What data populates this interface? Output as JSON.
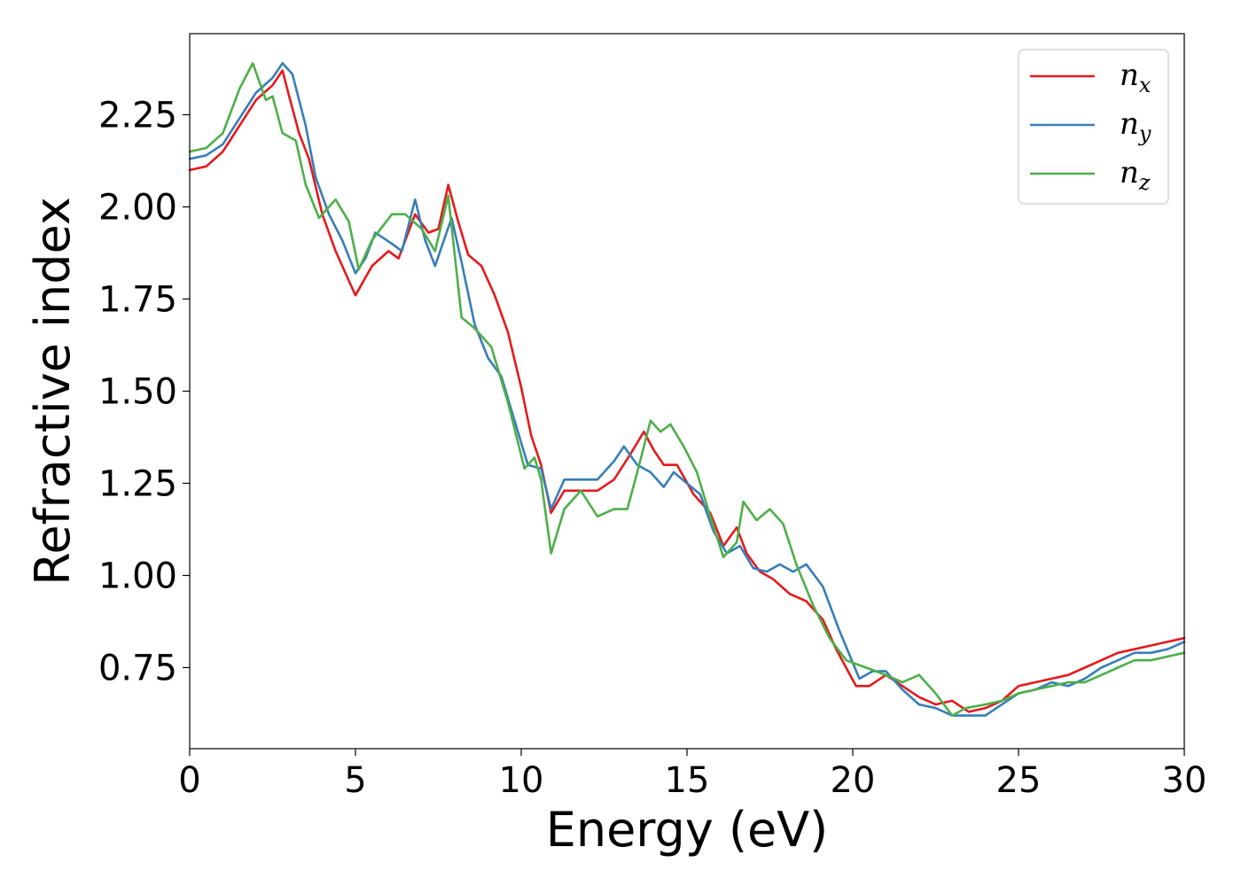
{
  "chart_data": {
    "type": "line",
    "xlabel": "Energy (eV)",
    "ylabel": "Refractive index",
    "xlim": [
      0,
      30
    ],
    "ylim": [
      0.53,
      2.47
    ],
    "x_ticks": [
      0,
      5,
      10,
      15,
      20,
      25,
      30
    ],
    "x_tick_labels": [
      "0",
      "5",
      "10",
      "15",
      "20",
      "25",
      "30"
    ],
    "y_ticks": [
      0.75,
      1.0,
      1.25,
      1.5,
      1.75,
      2.0,
      2.25
    ],
    "y_tick_labels": [
      "0.75",
      "1.00",
      "1.25",
      "1.50",
      "1.75",
      "2.00",
      "2.25"
    ],
    "grid": false,
    "legend_position": "top-right",
    "series": [
      {
        "name": "n_x",
        "legend_base": "n",
        "legend_sub": "x",
        "color": "#e41a1c",
        "points": [
          [
            0,
            2.1
          ],
          [
            0.5,
            2.11
          ],
          [
            1,
            2.15
          ],
          [
            1.5,
            2.22
          ],
          [
            2,
            2.29
          ],
          [
            2.5,
            2.33
          ],
          [
            2.8,
            2.37
          ],
          [
            3,
            2.3
          ],
          [
            3.3,
            2.2
          ],
          [
            3.6,
            2.13
          ],
          [
            4,
            1.98
          ],
          [
            4.4,
            1.88
          ],
          [
            4.8,
            1.8
          ],
          [
            5,
            1.76
          ],
          [
            5.5,
            1.84
          ],
          [
            6,
            1.88
          ],
          [
            6.3,
            1.86
          ],
          [
            6.8,
            1.98
          ],
          [
            7.2,
            1.93
          ],
          [
            7.5,
            1.94
          ],
          [
            7.8,
            2.06
          ],
          [
            8.1,
            1.96
          ],
          [
            8.4,
            1.87
          ],
          [
            8.8,
            1.84
          ],
          [
            9.2,
            1.76
          ],
          [
            9.6,
            1.66
          ],
          [
            10,
            1.51
          ],
          [
            10.3,
            1.38
          ],
          [
            10.6,
            1.3
          ],
          [
            10.9,
            1.17
          ],
          [
            11.3,
            1.23
          ],
          [
            11.8,
            1.23
          ],
          [
            12.3,
            1.23
          ],
          [
            12.8,
            1.26
          ],
          [
            13.3,
            1.33
          ],
          [
            13.7,
            1.39
          ],
          [
            14,
            1.34
          ],
          [
            14.3,
            1.3
          ],
          [
            14.7,
            1.3
          ],
          [
            15.2,
            1.22
          ],
          [
            15.7,
            1.17
          ],
          [
            16.1,
            1.08
          ],
          [
            16.5,
            1.13
          ],
          [
            16.8,
            1.06
          ],
          [
            17.2,
            1.01
          ],
          [
            17.6,
            0.99
          ],
          [
            18.1,
            0.95
          ],
          [
            18.6,
            0.93
          ],
          [
            19.1,
            0.88
          ],
          [
            19.5,
            0.8
          ],
          [
            20.1,
            0.7
          ],
          [
            20.5,
            0.7
          ],
          [
            21,
            0.73
          ],
          [
            21.5,
            0.7
          ],
          [
            22,
            0.67
          ],
          [
            22.5,
            0.65
          ],
          [
            23,
            0.66
          ],
          [
            23.5,
            0.63
          ],
          [
            24,
            0.64
          ],
          [
            24.5,
            0.66
          ],
          [
            25,
            0.7
          ],
          [
            25.5,
            0.71
          ],
          [
            26,
            0.72
          ],
          [
            26.5,
            0.73
          ],
          [
            27,
            0.75
          ],
          [
            27.5,
            0.77
          ],
          [
            28,
            0.79
          ],
          [
            28.5,
            0.8
          ],
          [
            29,
            0.81
          ],
          [
            29.5,
            0.82
          ],
          [
            30,
            0.83
          ]
        ]
      },
      {
        "name": "n_y",
        "legend_base": "n",
        "legend_sub": "y",
        "color": "#377eb8",
        "points": [
          [
            0,
            2.13
          ],
          [
            0.5,
            2.14
          ],
          [
            1,
            2.17
          ],
          [
            1.5,
            2.24
          ],
          [
            2,
            2.31
          ],
          [
            2.5,
            2.35
          ],
          [
            2.8,
            2.39
          ],
          [
            3.1,
            2.36
          ],
          [
            3.5,
            2.22
          ],
          [
            3.8,
            2.08
          ],
          [
            4.2,
            1.98
          ],
          [
            4.6,
            1.91
          ],
          [
            5,
            1.82
          ],
          [
            5.3,
            1.86
          ],
          [
            5.6,
            1.93
          ],
          [
            6.1,
            1.9
          ],
          [
            6.4,
            1.88
          ],
          [
            6.8,
            2.02
          ],
          [
            7.1,
            1.91
          ],
          [
            7.4,
            1.84
          ],
          [
            7.9,
            1.97
          ],
          [
            8.2,
            1.85
          ],
          [
            8.6,
            1.68
          ],
          [
            9,
            1.59
          ],
          [
            9.4,
            1.54
          ],
          [
            9.8,
            1.42
          ],
          [
            10.2,
            1.3
          ],
          [
            10.6,
            1.29
          ],
          [
            10.9,
            1.18
          ],
          [
            11.3,
            1.26
          ],
          [
            11.8,
            1.26
          ],
          [
            12.3,
            1.26
          ],
          [
            12.8,
            1.31
          ],
          [
            13.1,
            1.35
          ],
          [
            13.5,
            1.3
          ],
          [
            13.9,
            1.28
          ],
          [
            14.3,
            1.24
          ],
          [
            14.6,
            1.28
          ],
          [
            15,
            1.25
          ],
          [
            15.4,
            1.22
          ],
          [
            15.8,
            1.12
          ],
          [
            16.2,
            1.06
          ],
          [
            16.6,
            1.08
          ],
          [
            17,
            1.02
          ],
          [
            17.4,
            1.01
          ],
          [
            17.8,
            1.03
          ],
          [
            18.2,
            1.01
          ],
          [
            18.6,
            1.03
          ],
          [
            19.1,
            0.97
          ],
          [
            19.6,
            0.85
          ],
          [
            20.2,
            0.72
          ],
          [
            20.6,
            0.74
          ],
          [
            21,
            0.74
          ],
          [
            21.5,
            0.69
          ],
          [
            22,
            0.65
          ],
          [
            22.5,
            0.64
          ],
          [
            23,
            0.62
          ],
          [
            23.5,
            0.62
          ],
          [
            24,
            0.62
          ],
          [
            24.5,
            0.65
          ],
          [
            25,
            0.68
          ],
          [
            25.5,
            0.69
          ],
          [
            26,
            0.71
          ],
          [
            26.5,
            0.7
          ],
          [
            27,
            0.72
          ],
          [
            27.5,
            0.75
          ],
          [
            28,
            0.77
          ],
          [
            28.5,
            0.79
          ],
          [
            29,
            0.79
          ],
          [
            29.5,
            0.8
          ],
          [
            30,
            0.82
          ]
        ]
      },
      {
        "name": "n_z",
        "legend_base": "n",
        "legend_sub": "z",
        "color": "#4daf4a",
        "points": [
          [
            0,
            2.15
          ],
          [
            0.5,
            2.16
          ],
          [
            1,
            2.2
          ],
          [
            1.5,
            2.32
          ],
          [
            1.9,
            2.39
          ],
          [
            2.3,
            2.29
          ],
          [
            2.5,
            2.3
          ],
          [
            2.8,
            2.2
          ],
          [
            3.2,
            2.18
          ],
          [
            3.5,
            2.06
          ],
          [
            3.9,
            1.97
          ],
          [
            4.4,
            2.02
          ],
          [
            4.8,
            1.96
          ],
          [
            5.1,
            1.83
          ],
          [
            5.5,
            1.91
          ],
          [
            6.1,
            1.98
          ],
          [
            6.5,
            1.98
          ],
          [
            7,
            1.94
          ],
          [
            7.4,
            1.88
          ],
          [
            7.8,
            2.03
          ],
          [
            8.2,
            1.7
          ],
          [
            8.6,
            1.67
          ],
          [
            9.1,
            1.62
          ],
          [
            9.6,
            1.47
          ],
          [
            10.1,
            1.29
          ],
          [
            10.4,
            1.32
          ],
          [
            10.6,
            1.26
          ],
          [
            10.9,
            1.06
          ],
          [
            11.3,
            1.18
          ],
          [
            11.8,
            1.23
          ],
          [
            12.3,
            1.16
          ],
          [
            12.8,
            1.18
          ],
          [
            13.2,
            1.18
          ],
          [
            13.5,
            1.28
          ],
          [
            13.9,
            1.42
          ],
          [
            14.2,
            1.39
          ],
          [
            14.5,
            1.41
          ],
          [
            14.9,
            1.35
          ],
          [
            15.3,
            1.28
          ],
          [
            15.7,
            1.16
          ],
          [
            16.1,
            1.05
          ],
          [
            16.5,
            1.09
          ],
          [
            16.7,
            1.2
          ],
          [
            17.1,
            1.15
          ],
          [
            17.5,
            1.18
          ],
          [
            17.9,
            1.14
          ],
          [
            18.3,
            1.03
          ],
          [
            18.8,
            0.92
          ],
          [
            19.3,
            0.83
          ],
          [
            19.8,
            0.77
          ],
          [
            20.4,
            0.75
          ],
          [
            21,
            0.73
          ],
          [
            21.5,
            0.71
          ],
          [
            22,
            0.73
          ],
          [
            22.5,
            0.68
          ],
          [
            23,
            0.62
          ],
          [
            23.4,
            0.64
          ],
          [
            24,
            0.65
          ],
          [
            24.5,
            0.66
          ],
          [
            25,
            0.68
          ],
          [
            25.5,
            0.69
          ],
          [
            26,
            0.7
          ],
          [
            26.5,
            0.71
          ],
          [
            27,
            0.71
          ],
          [
            27.5,
            0.73
          ],
          [
            28,
            0.75
          ],
          [
            28.5,
            0.77
          ],
          [
            29,
            0.77
          ],
          [
            29.5,
            0.78
          ],
          [
            30,
            0.79
          ]
        ]
      }
    ]
  }
}
